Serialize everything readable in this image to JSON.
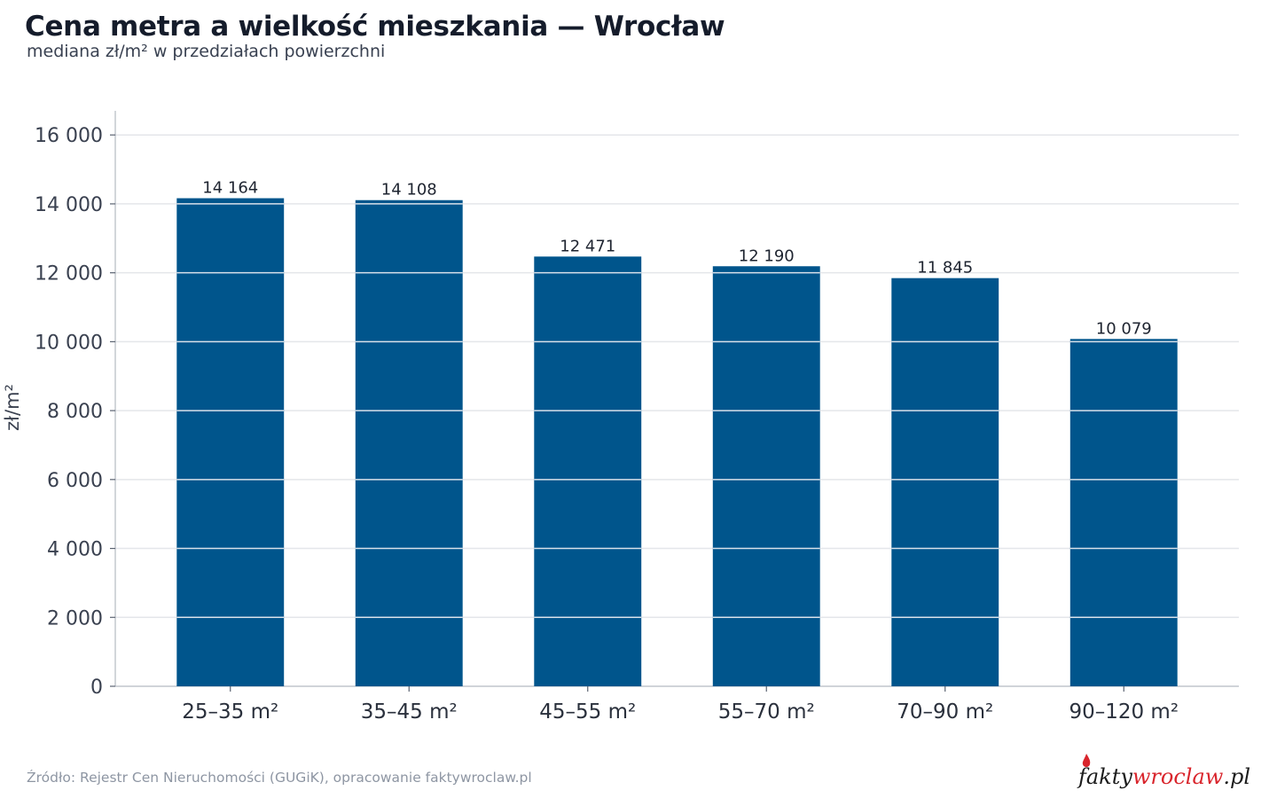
{
  "header": {
    "title": "Cena metra a wielkość mieszkania — Wrocław",
    "subtitle": "mediana zł/m² w przedziałach powierzchni"
  },
  "footer": {
    "source": "Źródło: Rejestr Cen Nieruchomości (GUGiK), opracowanie faktywroclaw.pl",
    "logo_part1": "fakty",
    "logo_part2": "wroclaw",
    "logo_part3": ".pl"
  },
  "colors": {
    "bar": "#00558c",
    "grid": "#e4e6ea",
    "axis": "#b5bac2",
    "logo_accent": "#d9252c"
  },
  "chart_data": {
    "type": "bar",
    "title": "Cena metra a wielkość mieszkania — Wrocław",
    "subtitle": "mediana zł/m² w przedziałach powierzchni",
    "xlabel": "",
    "ylabel": "zł/m²",
    "categories": [
      "25–35 m²",
      "35–45 m²",
      "45–55 m²",
      "55–70 m²",
      "70–90 m²",
      "90–120 m²"
    ],
    "values": [
      14164,
      14108,
      12471,
      12190,
      11845,
      10079
    ],
    "value_labels": [
      "14 164",
      "14 108",
      "12 471",
      "12 190",
      "11 845",
      "10 079"
    ],
    "ylim": [
      0,
      16700
    ],
    "yticks": [
      0,
      2000,
      4000,
      6000,
      8000,
      10000,
      12000,
      14000,
      16000
    ],
    "ytick_labels": [
      "0",
      "2 000",
      "4 000",
      "6 000",
      "8 000",
      "10 000",
      "12 000",
      "14 000",
      "16 000"
    ],
    "grid": true,
    "legend": "none"
  }
}
